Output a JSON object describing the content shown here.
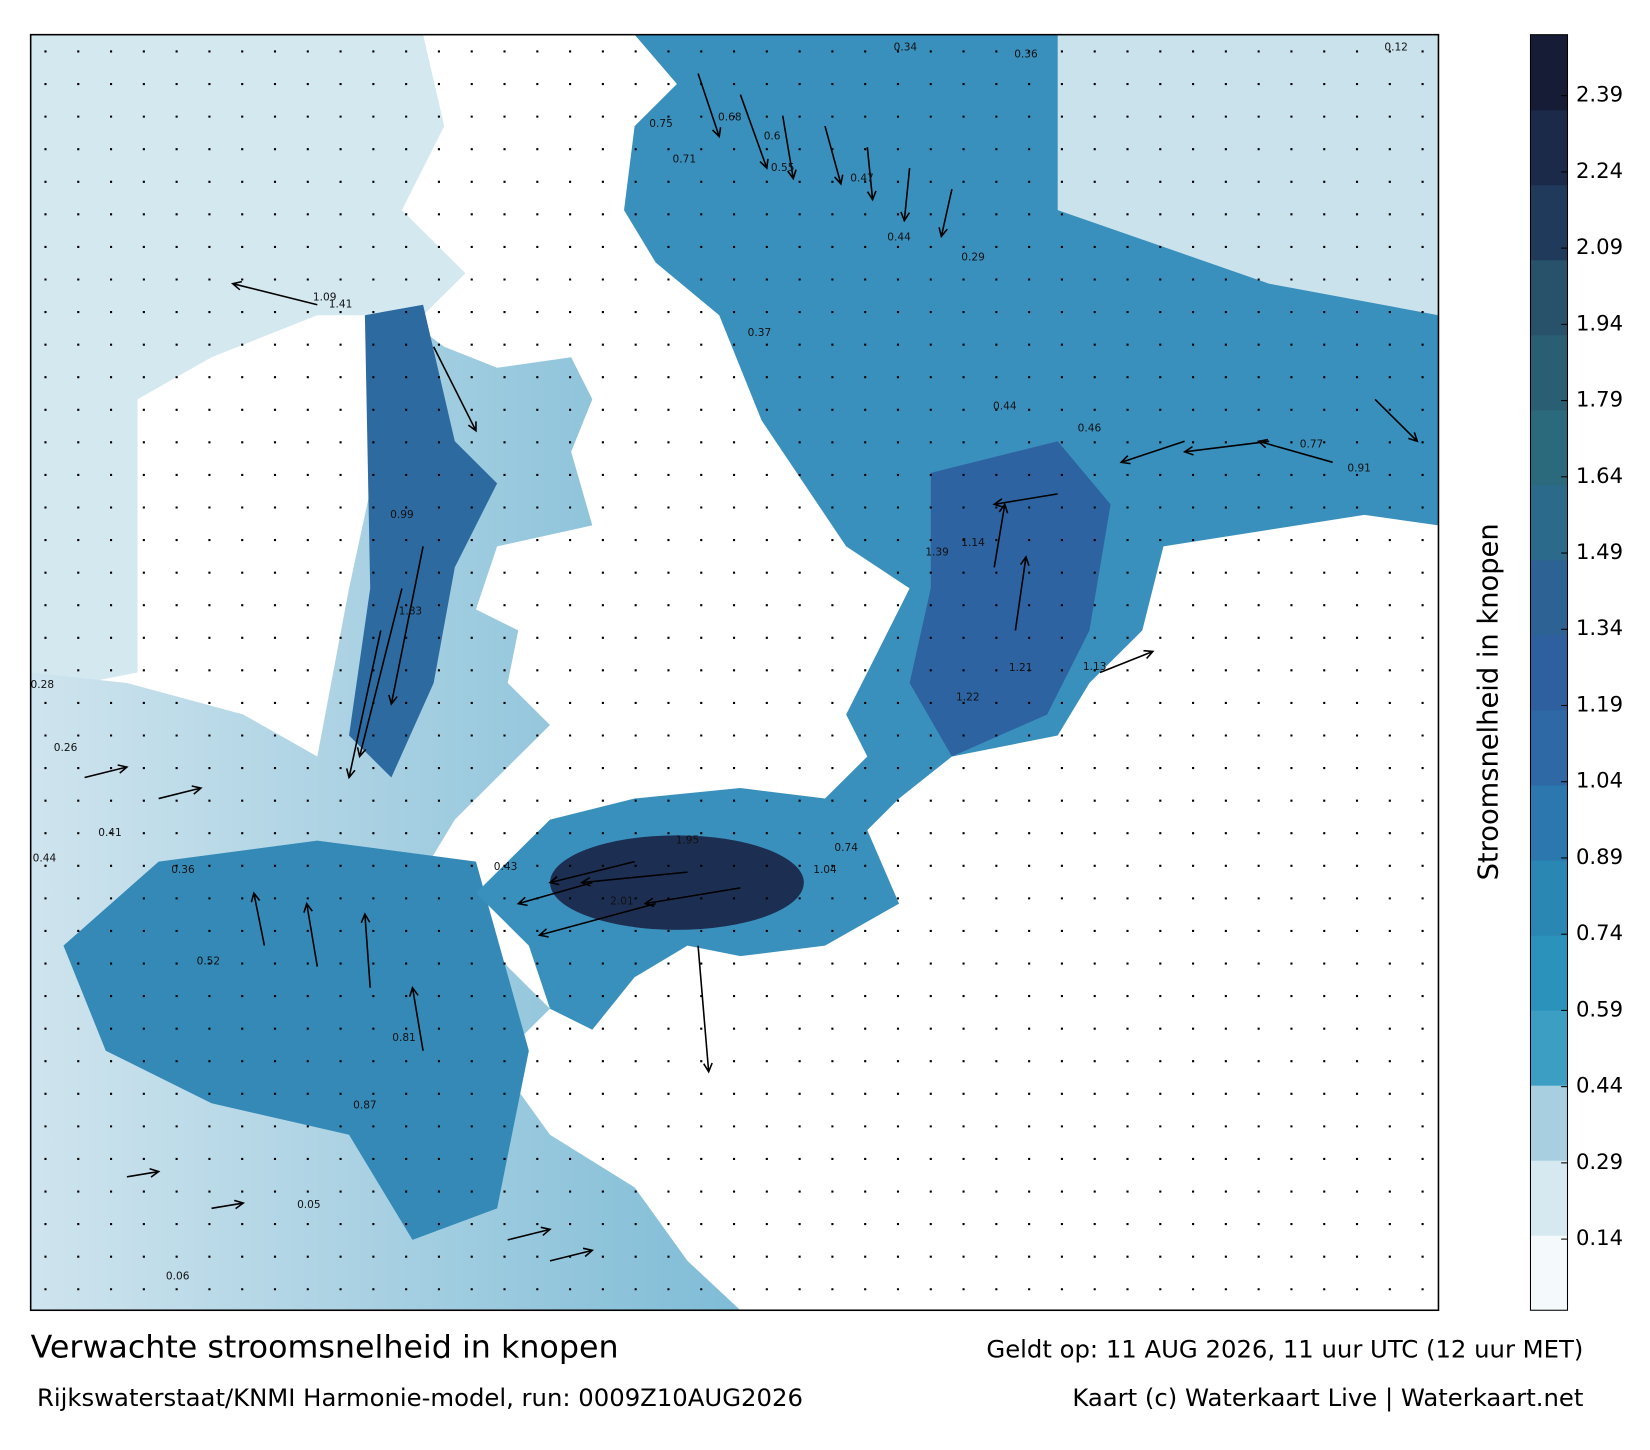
{
  "header": {
    "title": "Verwachte stroomsnelheid in knopen",
    "subtitle": "Rijkswaterstaat/KNMI Harmonie-model, run: 0009Z10AUG2026",
    "valid_time": "Geldt op: 11 AUG 2026, 11 uur UTC (12 uur MET)",
    "credit": "Kaart (c) Waterkaart Live | Waterkaart.net"
  },
  "colorbar": {
    "label": "Stroomsnelheid in knopen",
    "range": [
      0,
      2.51
    ],
    "ticks": [
      0.14,
      0.29,
      0.44,
      0.59,
      0.74,
      0.89,
      1.04,
      1.19,
      1.34,
      1.49,
      1.64,
      1.79,
      1.94,
      2.09,
      2.24,
      2.39
    ],
    "colors": [
      "#f4f9fb",
      "#d6e8f0",
      "#a8cfe0",
      "#3d9ec4",
      "#2b92bb",
      "#2a86b3",
      "#2c78ae",
      "#2e69a6",
      "#2e5f9e",
      "#2d6394",
      "#2b6a8a",
      "#2a6a7c",
      "#2a5e72",
      "#28526a",
      "#1f3a5a",
      "#1a2a48",
      "#161c36"
    ]
  },
  "map": {
    "speed_labels": [
      0.68,
      0.75,
      0.71,
      0.6,
      0.55,
      0.47,
      0.44,
      0.29,
      0.37,
      0.44,
      0.46,
      0.77,
      0.91,
      1.39,
      1.14,
      1.13,
      1.21,
      1.22,
      0.74,
      1.04,
      1.95,
      2.01,
      0.43,
      0.36,
      0.41,
      0.44,
      0.52,
      0.81,
      0.87,
      0.99,
      1.83,
      1.41,
      1.09,
      0.34,
      0.36,
      0.12,
      0.05,
      0.06,
      0.28,
      0.26
    ]
  }
}
